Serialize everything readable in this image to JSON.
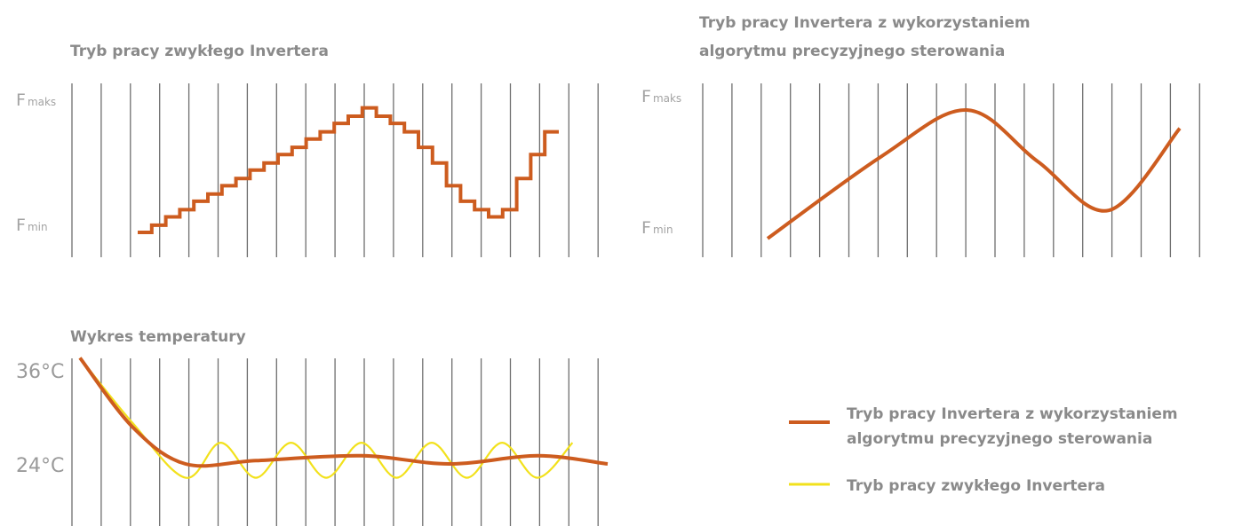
{
  "colors": {
    "precise": "#cd5c1f",
    "normal": "#f2e11c",
    "grid": "#6e6e6e",
    "text": "#8a8a8a"
  },
  "chart_data": [
    {
      "type": "line",
      "title": "Tryb pracy zwykłego Invertera",
      "ylabels": {
        "max": "F",
        "max_sub": "maks",
        "min": "F",
        "min_sub": "min"
      },
      "line_style": "step",
      "x": [
        0,
        1,
        2,
        3,
        4,
        5,
        6,
        7,
        8,
        9,
        10,
        11,
        12,
        13,
        14,
        15,
        16,
        17,
        18,
        19,
        20,
        21,
        22,
        23,
        24,
        25,
        26,
        27,
        28,
        29
      ],
      "values": [
        0.0,
        0.06,
        0.13,
        0.19,
        0.26,
        0.32,
        0.39,
        0.45,
        0.52,
        0.58,
        0.65,
        0.71,
        0.78,
        0.84,
        0.91,
        0.97,
        1.04,
        0.97,
        0.91,
        0.84,
        0.71,
        0.58,
        0.39,
        0.26,
        0.19,
        0.13,
        0.19,
        0.45,
        0.65,
        0.84
      ],
      "ylim": [
        0,
        1.1
      ],
      "grid": "vertical"
    },
    {
      "type": "line",
      "title": "Tryb pracy Invertera z wykorzystaniem algorytmu precyzyjnego sterowania",
      "title_lines": [
        "Tryb pracy Invertera z wykorzystaniem",
        "algorytmu precyzyjnego sterowania"
      ],
      "ylabels": {
        "max": "F",
        "max_sub": "maks",
        "min": "F",
        "min_sub": "min"
      },
      "line_style": "smooth",
      "x": [
        0,
        8,
        14,
        19,
        24,
        29
      ],
      "values": [
        -0.05,
        0.62,
        1.0,
        0.58,
        0.18,
        0.85
      ],
      "ylim": [
        0,
        1.1
      ],
      "grid": "vertical"
    },
    {
      "type": "line",
      "title": "Wykres temperatury",
      "ylabels": {
        "top": "36°C",
        "mid": "24°C"
      },
      "yticks": [
        36,
        24
      ],
      "series": [
        {
          "color": "#cd5c1f",
          "x": [
            0,
            3,
            6,
            10,
            16,
            21,
            26,
            30
          ],
          "values": [
            37.0,
            28.5,
            24.0,
            24.4,
            25.0,
            24.0,
            25.0,
            24.0
          ]
        },
        {
          "color": "#f2e11c",
          "x": [
            0,
            3,
            6,
            8,
            10,
            12,
            14,
            16,
            18,
            20,
            22,
            24,
            26,
            28
          ],
          "values": [
            37.0,
            29.0,
            22.3,
            26.6,
            22.3,
            26.6,
            22.3,
            26.6,
            22.3,
            26.6,
            22.3,
            26.6,
            22.3,
            26.6
          ]
        }
      ],
      "ylim": [
        18,
        38
      ],
      "grid": "vertical"
    }
  ],
  "legend": [
    {
      "label_lines": [
        "Tryb pracy Invertera z wykorzystaniem",
        "algorytmu precyzyjnego sterowania"
      ],
      "color": "#cd5c1f"
    },
    {
      "label_lines": [
        "Tryb pracy zwykłego Invertera"
      ],
      "color": "#f2e11c"
    }
  ]
}
